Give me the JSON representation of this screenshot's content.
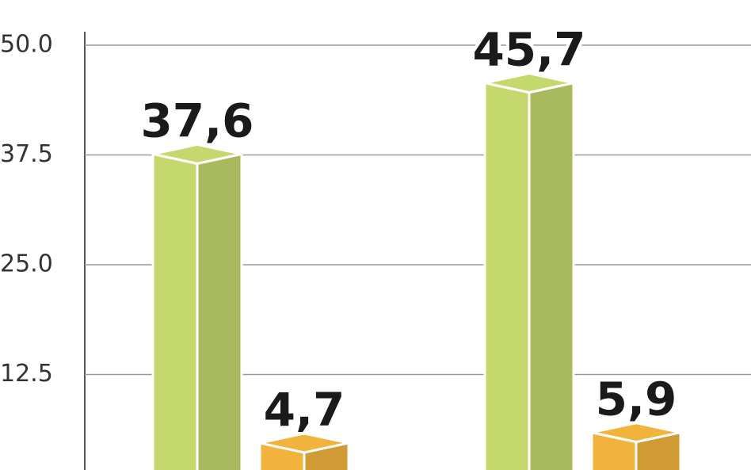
{
  "chart_data": {
    "type": "bar",
    "categories": [
      null,
      null
    ],
    "series": [
      {
        "color": "#c5d86d",
        "values": [
          37.6,
          45.7
        ],
        "value_labels": [
          "37,6",
          "45,7"
        ]
      },
      {
        "color": "#f2b33d",
        "values": [
          4.7,
          5.9
        ],
        "value_labels": [
          "4,7",
          "5,9"
        ]
      }
    ],
    "ylim": [
      0,
      50
    ],
    "yticks": [
      {
        "value": 12.5,
        "label": "12.5"
      },
      {
        "value": 25,
        "label": "25.0"
      },
      {
        "value": 37.5,
        "label": "37.5"
      },
      {
        "value": 50,
        "label": "50.0"
      }
    ],
    "grid": true
  }
}
